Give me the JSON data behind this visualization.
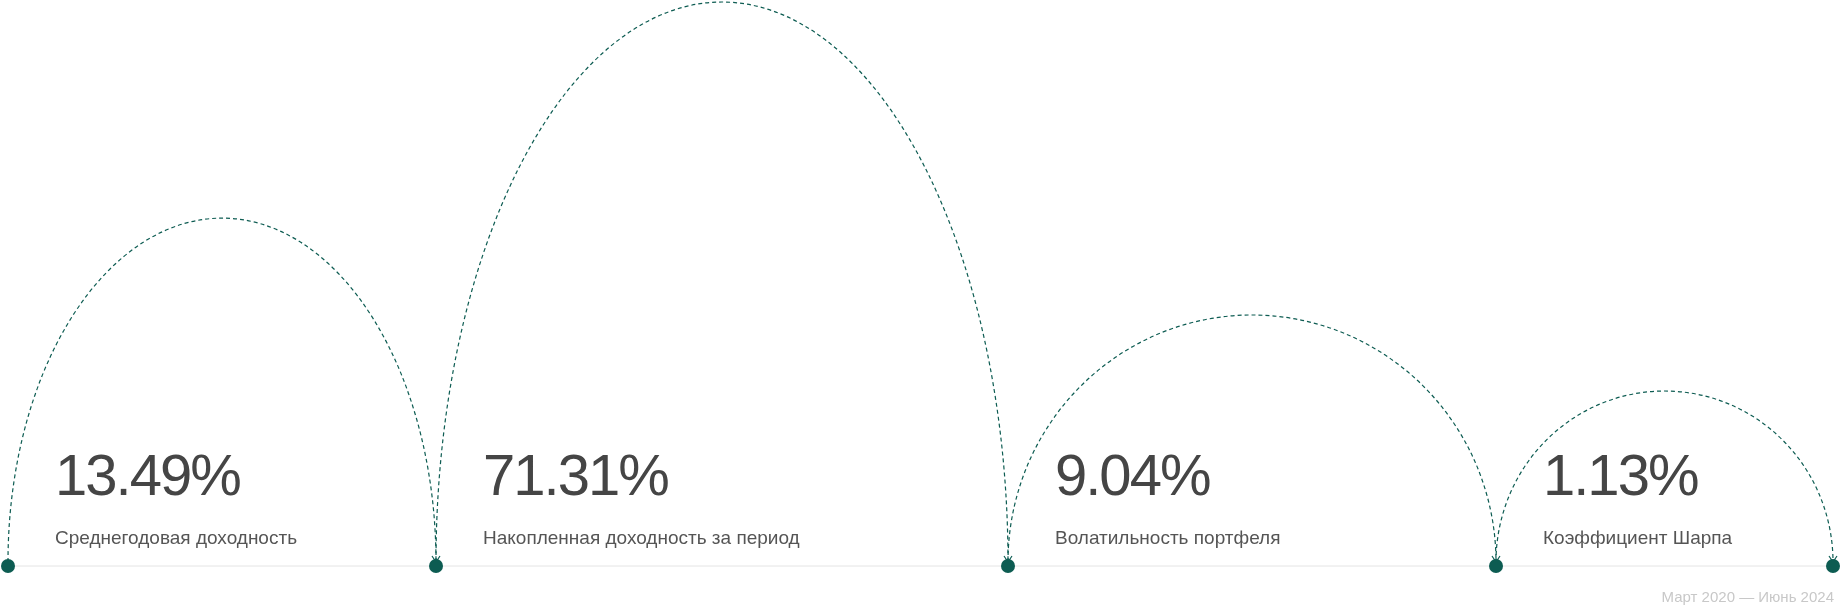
{
  "chart_data": {
    "type": "other",
    "categories": [
      "Среднегодовая доходность",
      "Накопленная доходность за период",
      "Волатильность портфеля",
      "Коэффициент Шарпа"
    ],
    "values": [
      13.49,
      71.31,
      9.04,
      1.13
    ],
    "value_labels": [
      "13.49%",
      "71.31%",
      "9.04%",
      "1.13%"
    ],
    "color": "#0d5c52",
    "annotations": [
      "Март 2020 — Июнь 2024"
    ]
  }
}
